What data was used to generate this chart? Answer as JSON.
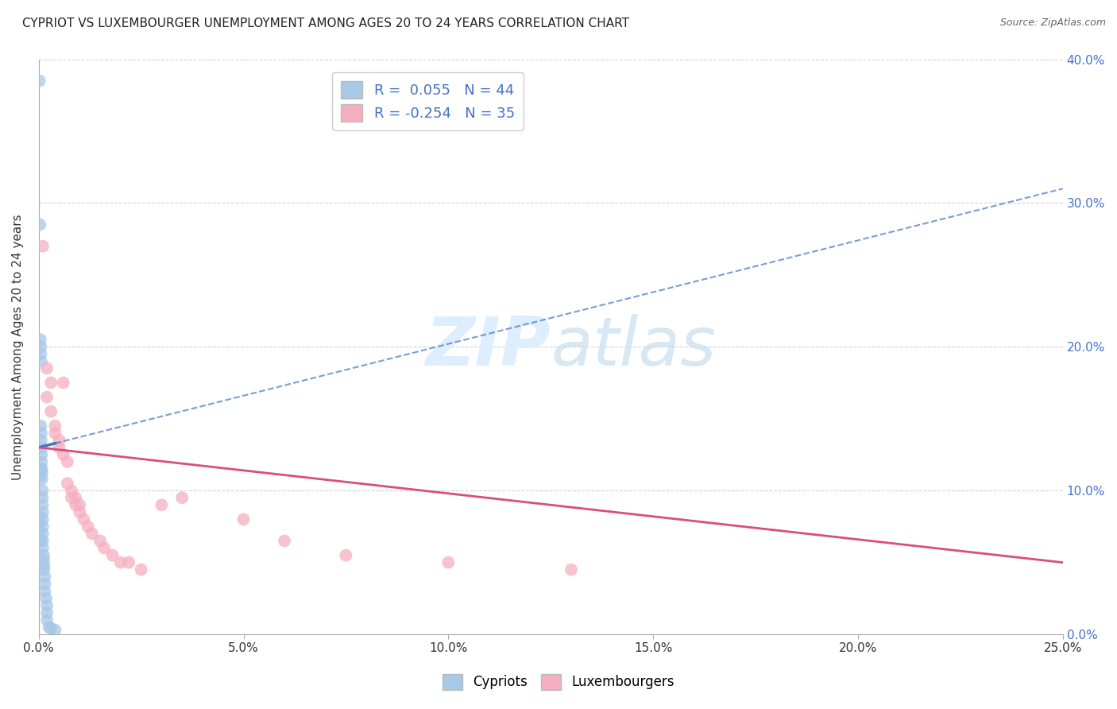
{
  "title": "CYPRIOT VS LUXEMBOURGER UNEMPLOYMENT AMONG AGES 20 TO 24 YEARS CORRELATION CHART",
  "source": "Source: ZipAtlas.com",
  "ylabel": "Unemployment Among Ages 20 to 24 years",
  "xlim": [
    0.0,
    0.25
  ],
  "ylim": [
    0.0,
    0.4
  ],
  "xticks": [
    0.0,
    0.05,
    0.1,
    0.15,
    0.2,
    0.25
  ],
  "yticks": [
    0.0,
    0.1,
    0.2,
    0.3,
    0.4
  ],
  "xtick_labels": [
    "0.0%",
    "5.0%",
    "10.0%",
    "15.0%",
    "20.0%",
    "25.0%"
  ],
  "ytick_labels_right": [
    "0.0%",
    "10.0%",
    "20.0%",
    "30.0%",
    "40.0%"
  ],
  "legend_r_cypriot": "0.055",
  "legend_n_cypriot": "44",
  "legend_r_lux": "-0.254",
  "legend_n_lux": "35",
  "cypriot_color": "#a8c8e8",
  "lux_color": "#f4afc0",
  "trend_cypriot_color": "#4472c4",
  "trend_lux_color": "#d94f7a",
  "watermark_color": "#ddeeff",
  "background_color": "#ffffff",
  "grid_color": "#c8c8c8",
  "cypriot_x": [
    0.0002,
    0.0002,
    0.0003,
    0.0003,
    0.0003,
    0.0004,
    0.0004,
    0.0004,
    0.0005,
    0.0005,
    0.0005,
    0.0005,
    0.0006,
    0.0006,
    0.0006,
    0.0007,
    0.0007,
    0.0007,
    0.0008,
    0.0008,
    0.0008,
    0.0009,
    0.0009,
    0.0009,
    0.001,
    0.001,
    0.001,
    0.001,
    0.001,
    0.001,
    0.0012,
    0.0012,
    0.0013,
    0.0013,
    0.0015,
    0.0015,
    0.0015,
    0.0018,
    0.002,
    0.002,
    0.002,
    0.0025,
    0.003,
    0.004
  ],
  "cypriot_y": [
    0.385,
    0.072,
    0.285,
    0.082,
    0.078,
    0.205,
    0.115,
    0.11,
    0.2,
    0.195,
    0.145,
    0.065,
    0.19,
    0.14,
    0.135,
    0.13,
    0.125,
    0.12,
    0.115,
    0.112,
    0.108,
    0.1,
    0.095,
    0.09,
    0.085,
    0.08,
    0.075,
    0.07,
    0.065,
    0.06,
    0.055,
    0.052,
    0.048,
    0.045,
    0.04,
    0.035,
    0.03,
    0.025,
    0.02,
    0.015,
    0.01,
    0.005,
    0.004,
    0.003
  ],
  "lux_x": [
    0.001,
    0.002,
    0.002,
    0.003,
    0.003,
    0.004,
    0.004,
    0.005,
    0.005,
    0.006,
    0.006,
    0.007,
    0.007,
    0.008,
    0.008,
    0.009,
    0.009,
    0.01,
    0.01,
    0.011,
    0.012,
    0.013,
    0.015,
    0.016,
    0.018,
    0.02,
    0.022,
    0.025,
    0.03,
    0.035,
    0.05,
    0.06,
    0.075,
    0.1,
    0.13
  ],
  "lux_y": [
    0.27,
    0.185,
    0.165,
    0.175,
    0.155,
    0.145,
    0.14,
    0.135,
    0.13,
    0.175,
    0.125,
    0.12,
    0.105,
    0.1,
    0.095,
    0.095,
    0.09,
    0.09,
    0.085,
    0.08,
    0.075,
    0.07,
    0.065,
    0.06,
    0.055,
    0.05,
    0.05,
    0.045,
    0.09,
    0.095,
    0.08,
    0.065,
    0.055,
    0.05,
    0.045
  ]
}
